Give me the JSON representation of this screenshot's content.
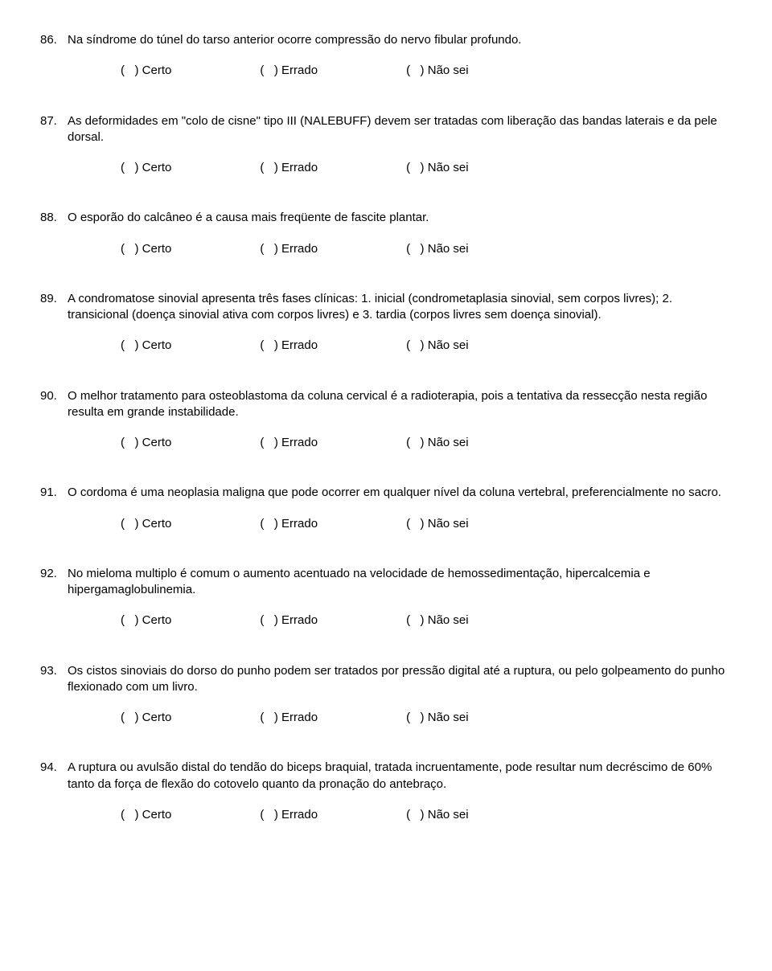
{
  "options": {
    "certo": "Certo",
    "errado": "Errado",
    "naosei": "Não sei",
    "paren": "(   ) "
  },
  "questions": [
    {
      "num": "86.",
      "text": "Na síndrome do túnel do tarso anterior ocorre compressão do nervo fibular profundo."
    },
    {
      "num": "87.",
      "text": "As deformidades em \"colo de cisne\" tipo III (NALEBUFF) devem ser tratadas com liberação das bandas laterais e da pele dorsal."
    },
    {
      "num": "88.",
      "text": "O esporão do calcâneo é a causa mais freqüente de fascite plantar."
    },
    {
      "num": "89.",
      "text": "A condromatose sinovial apresenta três fases clínicas: 1. inicial (condrometaplasia sinovial, sem corpos livres); 2. transicional (doença sinovial ativa com corpos livres) e 3. tardia (corpos livres sem doença sinovial)."
    },
    {
      "num": "90.",
      "text": "O melhor tratamento para osteoblastoma da coluna cervical é a radioterapia, pois a tentativa da ressecção nesta região resulta em grande instabilidade."
    },
    {
      "num": "91.",
      "text": "O cordoma é uma neoplasia maligna que pode ocorrer em qualquer nível da coluna vertebral, preferencialmente no sacro."
    },
    {
      "num": "92.",
      "text": "No mieloma multiplo é comum o aumento acentuado na velocidade de hemossedimentação, hipercalcemia e hipergamaglobulinemia."
    },
    {
      "num": "93.",
      "text": "Os cistos sinoviais do dorso do punho podem ser tratados por pressão digital até a ruptura, ou pelo golpeamento do punho flexionado com um livro."
    },
    {
      "num": "94.",
      "text": "A ruptura ou avulsão distal do tendão do biceps braquial, tratada incruentamente, pode resultar num decréscimo de 60% tanto da força de flexão do cotovelo quanto da pronação do antebraço."
    }
  ]
}
